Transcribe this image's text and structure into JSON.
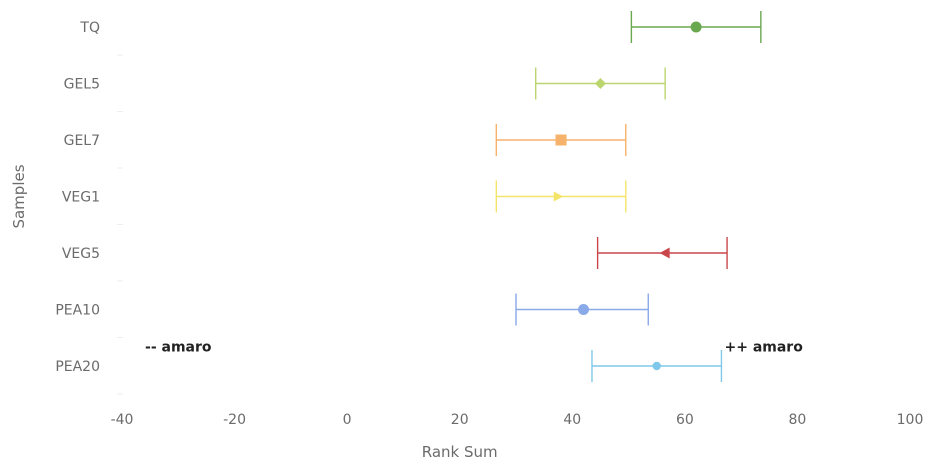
{
  "chart_data": {
    "type": "scatter",
    "xlabel": "Rank Sum",
    "ylabel": "Samples",
    "xlim": [
      -40,
      100
    ],
    "xticks": [
      -40,
      -20,
      0,
      20,
      40,
      60,
      80,
      100
    ],
    "grid": false,
    "legend": "none",
    "categories": [
      "TQ",
      "GEL5",
      "GEL7",
      "VEG1",
      "VEG5",
      "PEA10",
      "PEA20"
    ],
    "series": [
      {
        "category": "TQ",
        "value": 62,
        "low": 50.5,
        "high": 73.5,
        "marker": "circle",
        "color": "#6aa84f"
      },
      {
        "category": "GEL5",
        "value": 45,
        "low": 33.5,
        "high": 56.5,
        "marker": "diamond",
        "color": "#bcd66f"
      },
      {
        "category": "GEL7",
        "value": 38,
        "low": 26.5,
        "high": 49.5,
        "marker": "square",
        "color": "#f6b26b"
      },
      {
        "category": "VEG1",
        "value": 37.5,
        "low": 26.5,
        "high": 49.5,
        "marker": "triangle-right",
        "color": "#f5e46b"
      },
      {
        "category": "VEG5",
        "value": 56.5,
        "low": 44.5,
        "high": 67.5,
        "marker": "triangle-left",
        "color": "#c9474b"
      },
      {
        "category": "PEA10",
        "value": 42,
        "low": 30,
        "high": 53.5,
        "marker": "circle",
        "color": "#8aa9e8"
      },
      {
        "category": "PEA20",
        "value": 55,
        "low": 43.5,
        "high": 66.5,
        "marker": "circle-small",
        "color": "#7fc8ea"
      }
    ],
    "annotations": [
      {
        "text": "-- amaro",
        "x": -30,
        "category": "PEA10"
      },
      {
        "text": "++ amaro",
        "x": 74,
        "category": "PEA10"
      }
    ]
  }
}
